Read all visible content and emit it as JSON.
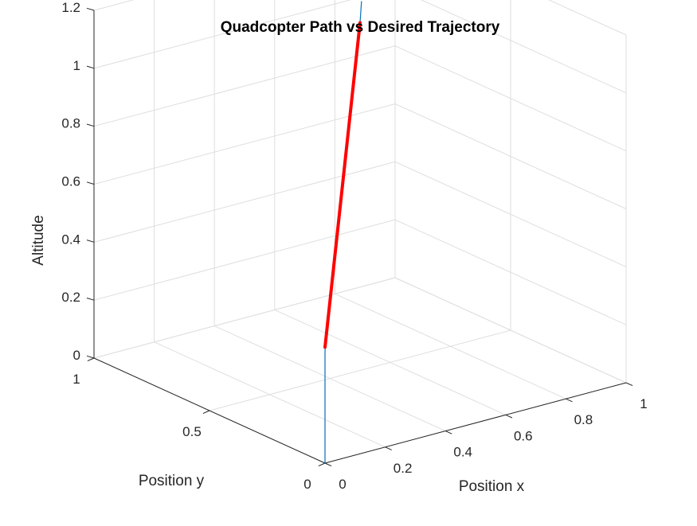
{
  "chart_data": {
    "type": "line3d",
    "title": "Quadcopter Path vs Desired Trajectory",
    "xlabel": "Position x",
    "ylabel": "Position y",
    "zlabel": "Altitude",
    "xlim": [
      0,
      1
    ],
    "ylim": [
      0,
      1
    ],
    "zlim": [
      0,
      1.2
    ],
    "x_ticks": [
      "0",
      "0.2",
      "0.4",
      "0.6",
      "0.8",
      "1"
    ],
    "y_ticks": [
      "0",
      "0.5",
      "1"
    ],
    "z_ticks": [
      "0",
      "0.2",
      "0.4",
      "0.6",
      "0.8",
      "1",
      "1.2"
    ],
    "grid": true,
    "series": [
      {
        "color": "#0072BD",
        "points": [
          {
            "x": 0,
            "y": 0,
            "z": 0
          },
          {
            "x": 0,
            "y": 0,
            "z": 0.38
          },
          {
            "x": 0.005,
            "y": 0.005,
            "z": 0.41
          },
          {
            "x": 0.012,
            "y": 0.012,
            "z": 0.44
          },
          {
            "x": 0.5,
            "y": 0.5,
            "z": 1.2
          },
          {
            "x": 0.52,
            "y": 0.52,
            "z": 1.26
          }
        ]
      },
      {
        "color": "#FF0000",
        "points": [
          {
            "x": 0,
            "y": 0,
            "z": 0.4
          },
          {
            "x": 0.5,
            "y": 0.5,
            "z": 1.2
          }
        ]
      }
    ]
  }
}
